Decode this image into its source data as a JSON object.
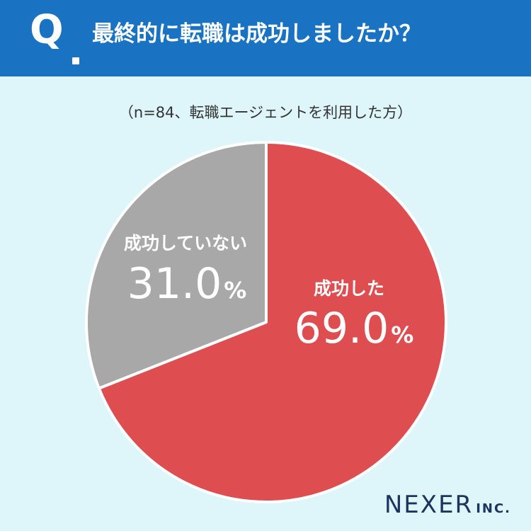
{
  "header": {
    "q_label": "Q",
    "question": "最終的に転職は成功しましたか？"
  },
  "note": "（n=84、転職エージェントを利用した方）",
  "logo": {
    "main": "NEXER",
    "sub": "INC."
  },
  "colors": {
    "header_bg": "#1a73c2",
    "page_bg": "#def5f9",
    "success": "#de4d4f",
    "not_success": "#a8a8a8",
    "text_white": "#ffffff",
    "logo": "#1b355f"
  },
  "chart_data": {
    "type": "pie",
    "slices": [
      {
        "label": "成功した",
        "value": 69.0,
        "value_text": "69.0",
        "unit": "%",
        "color": "#de4d4f"
      },
      {
        "label": "成功していない",
        "value": 31.0,
        "value_text": "31.0",
        "unit": "%",
        "color": "#a8a8a8"
      }
    ]
  }
}
